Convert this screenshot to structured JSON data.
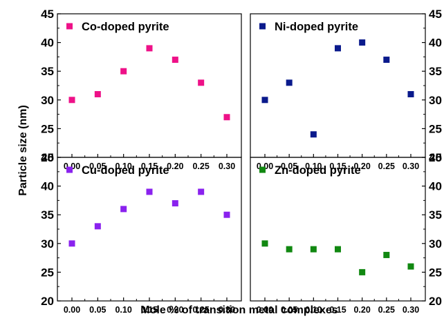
{
  "chart_data": [
    {
      "type": "scatter",
      "x": [
        0.0,
        0.05,
        0.1,
        0.15,
        0.2,
        0.25,
        0.3
      ],
      "x_tick_labels": [
        "0.00",
        "0.05",
        "0.10",
        "0.15",
        "0.20",
        "0.25",
        "0.30"
      ],
      "series": [
        {
          "name": "Co-doped pyrite",
          "values": [
            30,
            31,
            35,
            39,
            37,
            33,
            27
          ],
          "color": "#ee1188"
        }
      ],
      "ylim": [
        20,
        45
      ],
      "y_ticks": [
        "20",
        "25",
        "30",
        "35",
        "40",
        "45"
      ],
      "y_axis_side": "left",
      "legend_position": "top-left",
      "grid": false
    },
    {
      "type": "scatter",
      "x": [
        0.0,
        0.05,
        0.1,
        0.15,
        0.2,
        0.25,
        0.3
      ],
      "x_tick_labels": [
        "0.00",
        "0.05",
        "0.10",
        "0.15",
        "0.20",
        "0.25",
        "0.30"
      ],
      "series": [
        {
          "name": "Ni-doped pyrite",
          "values": [
            30,
            33,
            24,
            39,
            40,
            37,
            31
          ],
          "color": "#0a1a8c"
        }
      ],
      "ylim": [
        20,
        45
      ],
      "y_ticks": [
        "20",
        "25",
        "30",
        "35",
        "40",
        "45"
      ],
      "y_axis_side": "right",
      "legend_position": "top-left",
      "grid": false
    },
    {
      "type": "scatter",
      "x": [
        0.0,
        0.05,
        0.1,
        0.15,
        0.2,
        0.25,
        0.3
      ],
      "x_tick_labels": [
        "0.00",
        "0.05",
        "0.10",
        "0.15",
        "0.20",
        "0.25",
        "0.30"
      ],
      "series": [
        {
          "name": "Cu-doped pyrite",
          "values": [
            30,
            33,
            36,
            39,
            37,
            39,
            35
          ],
          "color": "#8a22ee"
        }
      ],
      "ylim": [
        20,
        45
      ],
      "y_ticks": [
        "20",
        "25",
        "30",
        "35",
        "40",
        "45"
      ],
      "y_axis_side": "left",
      "legend_position": "top-left",
      "grid": false
    },
    {
      "type": "scatter",
      "x": [
        0.0,
        0.05,
        0.1,
        0.15,
        0.2,
        0.25,
        0.3
      ],
      "x_tick_labels": [
        "0.00",
        "0.05",
        "0.10",
        "0.15",
        "0.20",
        "0.25",
        "0.30"
      ],
      "series": [
        {
          "name": "Zn-doped pyrite",
          "values": [
            30,
            29,
            29,
            29,
            25,
            28,
            26
          ],
          "color": "#118811"
        }
      ],
      "ylim": [
        20,
        45
      ],
      "y_ticks": [
        "20",
        "25",
        "30",
        "35",
        "40",
        "45"
      ],
      "y_axis_side": "right",
      "legend_position": "top-left",
      "grid": false
    }
  ],
  "figure": {
    "ylabel": "Particle size (nm)",
    "xlabel": "Mole % of transition metal complexes"
  }
}
